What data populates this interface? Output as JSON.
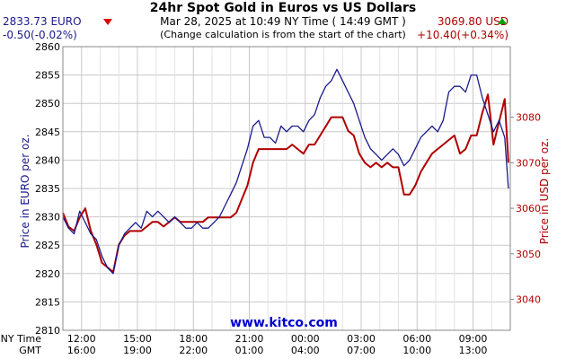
{
  "header": {
    "title": "24hr Spot Gold in Euros vs US Dollars",
    "subtitle": "Mar 28, 2025 at 10:49 NY Time ( 14:49 GMT )",
    "note": "(Change calculation is from the start of the chart)",
    "eur_price": "2833.73 EURO",
    "eur_change": "-0.50(-0.02%)",
    "usd_price": "3069.80 USD",
    "usd_change": "+10.40(+0.34%)"
  },
  "colors": {
    "eur": "#1a1a8c",
    "usd": "#b00000",
    "grid": "#c8c8c8",
    "down": "#e00000",
    "up": "#00a000",
    "watermark": "#0000cc"
  },
  "icons": {
    "eur_trend": "down-triangle-icon",
    "usd_trend": "up-triangle-icon"
  },
  "chart_data": {
    "type": "line",
    "title": "24hr Spot Gold in Euros vs US Dollars",
    "watermark": "www.kitco.com",
    "x_row_labels": [
      "NY Time",
      "GMT"
    ],
    "x_ticks_ny": [
      "12:00",
      "15:00",
      "18:00",
      "21:00",
      "00:00",
      "03:00",
      "06:00",
      "09:00"
    ],
    "x_ticks_gmt": [
      "16:00",
      "19:00",
      "22:00",
      "01:00",
      "04:00",
      "07:00",
      "10:00",
      "13:00"
    ],
    "x_range_hours": [
      0,
      24
    ],
    "x_tick_hours": [
      1,
      4,
      7,
      10,
      13,
      16,
      19,
      22
    ],
    "y_left": {
      "label": "Price in EURO per oz.",
      "range": [
        2810,
        2860
      ],
      "ticks": [
        2810,
        2815,
        2820,
        2825,
        2830,
        2835,
        2840,
        2845,
        2850,
        2855,
        2860
      ]
    },
    "y_right": {
      "label": "Price in USD per oz.",
      "range": [
        3033.2,
        3095.5
      ],
      "ticks": [
        3040,
        3050,
        3060,
        3070,
        3080
      ]
    },
    "grid": true,
    "series": [
      {
        "axis": "left",
        "x": [
          0,
          0.3,
          0.6,
          0.9,
          1.2,
          1.5,
          1.8,
          2.1,
          2.4,
          2.7,
          3.0,
          3.3,
          3.6,
          3.9,
          4.2,
          4.5,
          4.8,
          5.1,
          5.4,
          5.7,
          6.0,
          6.3,
          6.6,
          6.9,
          7.2,
          7.5,
          7.8,
          8.1,
          8.4,
          8.7,
          9.0,
          9.3,
          9.6,
          9.9,
          10.2,
          10.5,
          10.8,
          11.1,
          11.4,
          11.7,
          12.0,
          12.3,
          12.6,
          12.9,
          13.2,
          13.5,
          13.8,
          14.1,
          14.4,
          14.7,
          15.0,
          15.3,
          15.6,
          15.9,
          16.2,
          16.5,
          16.8,
          17.1,
          17.4,
          17.7,
          18.0,
          18.3,
          18.6,
          18.9,
          19.2,
          19.5,
          19.8,
          20.1,
          20.4,
          20.7,
          21.0,
          21.3,
          21.6,
          21.9,
          22.2,
          22.5,
          22.8,
          23.1,
          23.4,
          23.7,
          23.9
        ],
        "values": [
          2830,
          2828,
          2827,
          2831,
          2829,
          2827,
          2826,
          2823,
          2821,
          2820,
          2825,
          2827,
          2828,
          2829,
          2828,
          2831,
          2830,
          2831,
          2830,
          2829,
          2830,
          2829,
          2828,
          2828,
          2829,
          2828,
          2828,
          2829,
          2830,
          2832,
          2834,
          2836,
          2839,
          2842,
          2846,
          2847,
          2844,
          2844,
          2843,
          2846,
          2845,
          2846,
          2846,
          2845,
          2847,
          2848,
          2851,
          2853,
          2854,
          2856,
          2854,
          2852,
          2850,
          2847,
          2844,
          2842,
          2841,
          2840,
          2841,
          2842,
          2841,
          2839,
          2840,
          2842,
          2844,
          2845,
          2846,
          2845,
          2847,
          2852,
          2853,
          2853,
          2852,
          2855,
          2855,
          2851,
          2848,
          2845,
          2847,
          2844,
          2835
        ]
      },
      {
        "axis": "right",
        "x": [
          0,
          0.3,
          0.6,
          0.9,
          1.2,
          1.5,
          1.8,
          2.1,
          2.4,
          2.7,
          3.0,
          3.3,
          3.6,
          3.9,
          4.2,
          4.5,
          4.8,
          5.1,
          5.4,
          5.7,
          6.0,
          6.3,
          6.6,
          6.9,
          7.2,
          7.5,
          7.8,
          8.1,
          8.4,
          8.7,
          9.0,
          9.3,
          9.6,
          9.9,
          10.2,
          10.5,
          10.8,
          11.1,
          11.4,
          11.7,
          12.0,
          12.3,
          12.6,
          12.9,
          13.2,
          13.5,
          13.8,
          14.1,
          14.4,
          14.7,
          15.0,
          15.3,
          15.6,
          15.9,
          16.2,
          16.5,
          16.8,
          17.1,
          17.4,
          17.7,
          18.0,
          18.3,
          18.6,
          18.9,
          19.2,
          19.5,
          19.8,
          20.1,
          20.4,
          20.7,
          21.0,
          21.3,
          21.6,
          21.9,
          22.2,
          22.5,
          22.8,
          23.1,
          23.4,
          23.7,
          23.9
        ],
        "values": [
          3059,
          3056,
          3055,
          3058,
          3060,
          3055,
          3052,
          3048,
          3047,
          3046,
          3052,
          3054,
          3055,
          3055,
          3055,
          3056,
          3057,
          3057,
          3056,
          3057,
          3058,
          3057,
          3057,
          3057,
          3057,
          3057,
          3058,
          3058,
          3058,
          3058,
          3058,
          3059,
          3062,
          3065,
          3070,
          3073,
          3073,
          3073,
          3073,
          3073,
          3073,
          3074,
          3073,
          3072,
          3074,
          3074,
          3076,
          3078,
          3080,
          3080,
          3080,
          3077,
          3076,
          3072,
          3070,
          3069,
          3070,
          3069,
          3070,
          3069,
          3069,
          3063,
          3063,
          3065,
          3068,
          3070,
          3072,
          3073,
          3074,
          3075,
          3076,
          3072,
          3073,
          3076,
          3076,
          3081,
          3085,
          3074,
          3079,
          3084,
          3070
        ]
      }
    ]
  }
}
